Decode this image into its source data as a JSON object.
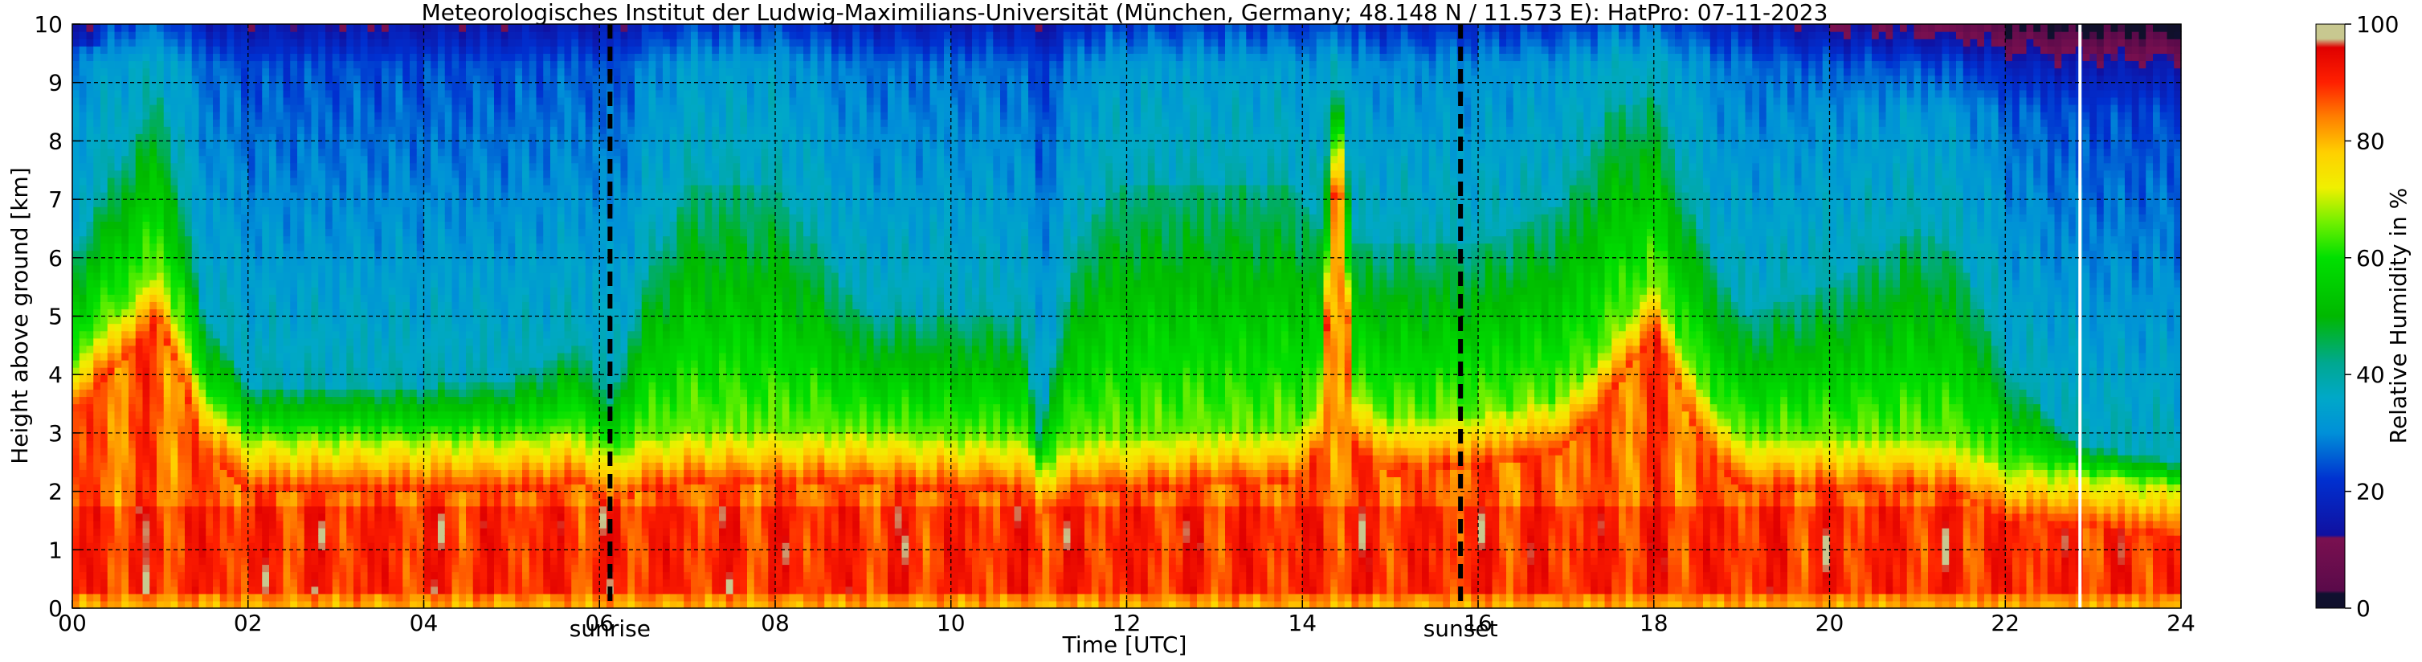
{
  "chart_data": {
    "type": "heatmap",
    "title": "Meteorologisches Institut der Ludwig-Maximilians-Universität (München, Germany; 48.148 N / 11.573 E):    HatPro: 07-11-2023",
    "xlabel": "Time [UTC]",
    "ylabel": "Height above ground [km]",
    "xlim": [
      0,
      24
    ],
    "ylim": [
      0,
      10
    ],
    "xticks": [
      0,
      2,
      4,
      6,
      8,
      10,
      12,
      14,
      16,
      18,
      20,
      22,
      24
    ],
    "xtick_labels": [
      "00",
      "02",
      "04",
      "06",
      "08",
      "10",
      "12",
      "14",
      "16",
      "18",
      "20",
      "22",
      "24"
    ],
    "yticks": [
      0,
      1,
      2,
      3,
      4,
      5,
      6,
      7,
      8,
      9,
      10
    ],
    "ytick_labels": [
      "0",
      "1",
      "2",
      "3",
      "4",
      "5",
      "6",
      "7",
      "8",
      "9",
      "10"
    ],
    "grid": true,
    "events": [
      {
        "label": "sunrise",
        "time": 6.12
      },
      {
        "label": "sunset",
        "time": 15.8
      }
    ],
    "data_gap_time": 22.85,
    "colorbar": {
      "label": "Relative Humidity in %",
      "range": [
        0,
        100
      ],
      "ticks": [
        0,
        20,
        40,
        60,
        80,
        100
      ],
      "tick_labels": [
        "0",
        "20",
        "40",
        "60",
        "80",
        "100"
      ],
      "stops": [
        {
          "value": 0,
          "color": "#10102a"
        },
        {
          "value": 2.5,
          "color": "#101030"
        },
        {
          "value": 3,
          "color": "#5a0a4a"
        },
        {
          "value": 12,
          "color": "#7a1050"
        },
        {
          "value": 12.5,
          "color": "#1010a0"
        },
        {
          "value": 22,
          "color": "#0030d0"
        },
        {
          "value": 30,
          "color": "#0090d8"
        },
        {
          "value": 36,
          "color": "#00a8c8"
        },
        {
          "value": 42,
          "color": "#00a890"
        },
        {
          "value": 50,
          "color": "#00b800"
        },
        {
          "value": 60,
          "color": "#00e000"
        },
        {
          "value": 66,
          "color": "#70f000"
        },
        {
          "value": 72,
          "color": "#f0f000"
        },
        {
          "value": 78,
          "color": "#ffd000"
        },
        {
          "value": 84,
          "color": "#ff8000"
        },
        {
          "value": 90,
          "color": "#ff2000"
        },
        {
          "value": 96,
          "color": "#e00000"
        },
        {
          "value": 97.5,
          "color": "#c8c890"
        },
        {
          "value": 100,
          "color": "#c8c890"
        }
      ]
    },
    "profile_model": {
      "description_times": [
        0,
        0.5,
        1.0,
        1.5,
        2.0,
        3.0,
        4.0,
        5.0,
        5.8,
        6.12,
        6.5,
        7.0,
        8.0,
        9.0,
        10.0,
        10.8,
        11.0,
        11.5,
        12.0,
        13.0,
        13.9,
        14.2,
        14.4,
        14.6,
        15.0,
        16.0,
        17.0,
        17.5,
        18.0,
        18.5,
        19.0,
        20.0,
        21.0,
        21.5,
        22.0,
        22.85,
        24.0
      ],
      "bl_top_km": [
        4.2,
        5.0,
        5.8,
        3.6,
        2.9,
        2.9,
        2.9,
        2.9,
        3.0,
        2.6,
        2.9,
        3.0,
        3.0,
        3.0,
        2.9,
        2.9,
        2.4,
        2.9,
        2.9,
        3.0,
        3.0,
        3.5,
        9.0,
        3.6,
        3.2,
        3.3,
        3.6,
        4.5,
        5.6,
        3.8,
        2.9,
        2.9,
        2.9,
        2.8,
        2.4,
        2.3,
        2.1
      ],
      "moist_top_km": [
        6.0,
        7.5,
        8.8,
        5.0,
        3.8,
        3.8,
        3.8,
        3.9,
        4.5,
        3.5,
        5.5,
        7.2,
        7.2,
        5.0,
        5.0,
        5.0,
        3.0,
        6.5,
        7.3,
        7.3,
        7.3,
        6.5,
        9.5,
        6.2,
        6.2,
        6.2,
        7.0,
        8.5,
        8.8,
        6.5,
        5.0,
        5.5,
        6.5,
        6.0,
        4.0,
        2.8,
        2.5
      ]
    }
  }
}
